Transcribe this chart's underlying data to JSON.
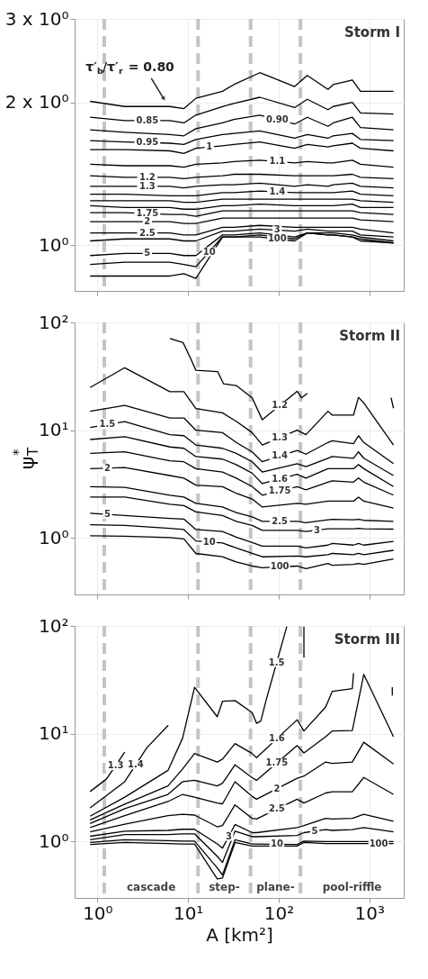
{
  "chart_data": [
    {
      "type": "line",
      "title": "Storm I",
      "log": "xy",
      "grid": true,
      "tick_labels": "y",
      "xlim": [
        0.56,
        2400
      ],
      "xticks": [
        {
          "value": 1,
          "label": null
        },
        {
          "value": 10,
          "label": null
        },
        {
          "value": 100,
          "label": null
        },
        {
          "value": 1000,
          "label": null
        }
      ],
      "ylim": [
        0.8,
        3
      ],
      "yticks": [
        {
          "value": 1,
          "label": "10⁰"
        },
        {
          "value": 2,
          "label": "2 x 10⁰"
        },
        {
          "value": 3,
          "label": "3 x 10⁰"
        }
      ],
      "ref_lines": [
        {
          "axis": "x",
          "value": 1.19,
          "color": "#c4c4c4",
          "line_style": "dashed"
        },
        {
          "axis": "x",
          "value": 12.9,
          "color": "#c4c4c4",
          "line_style": "dashed"
        },
        {
          "axis": "x",
          "value": 49,
          "color": "#c4c4c4",
          "line_style": "dashed"
        },
        {
          "axis": "x",
          "value": 174,
          "color": "#c4c4c4",
          "line_style": "dashed"
        }
      ],
      "annotations": [
        {
          "text": "τ′$_{b}$/τ′$_{r}$ = 0.80",
          "x": 5.66,
          "y": 1.99
        }
      ],
      "x": [
        0.83,
        2,
        6.3,
        9,
        12.2,
        24,
        32,
        62,
        150,
        207,
        350,
        400,
        650,
        800,
        1850
      ],
      "series": [
        {
          "color": "#000000",
          "values": [
            2.01,
            1.96,
            1.96,
            1.94,
            2.04,
            2.11,
            2.18,
            2.31,
            2.16,
            2.28,
            2.13,
            2.18,
            2.23,
            2.11,
            2.11
          ]
        },
        {
          "name": "0.85",
          "color": "#000000",
          "values": [
            1.86,
            1.83,
            1.83,
            1.81,
            1.88,
            1.96,
            1.99,
            2.05,
            1.95,
            2.03,
            1.93,
            1.96,
            2.0,
            1.9,
            1.89
          ]
        },
        {
          "name": "0.90",
          "color": "#000000",
          "values": [
            1.75,
            1.73,
            1.71,
            1.7,
            1.76,
            1.81,
            1.84,
            1.88,
            1.8,
            1.86,
            1.78,
            1.81,
            1.86,
            1.77,
            1.75
          ]
        },
        {
          "name": "0.95",
          "color": "#000000",
          "values": [
            1.66,
            1.65,
            1.64,
            1.63,
            1.67,
            1.71,
            1.72,
            1.74,
            1.68,
            1.71,
            1.68,
            1.7,
            1.72,
            1.67,
            1.66
          ]
        },
        {
          "name": "1",
          "color": "#000000",
          "values": [
            1.59,
            1.59,
            1.58,
            1.56,
            1.6,
            1.62,
            1.63,
            1.65,
            1.6,
            1.63,
            1.61,
            1.62,
            1.64,
            1.6,
            1.58
          ]
        },
        {
          "name": "1.1",
          "color": "#000000",
          "values": [
            1.48,
            1.47,
            1.47,
            1.46,
            1.48,
            1.49,
            1.5,
            1.51,
            1.49,
            1.5,
            1.49,
            1.49,
            1.51,
            1.48,
            1.46
          ]
        },
        {
          "name": "1.2",
          "color": "#000000",
          "values": [
            1.4,
            1.39,
            1.39,
            1.38,
            1.39,
            1.4,
            1.41,
            1.41,
            1.4,
            1.4,
            1.4,
            1.4,
            1.41,
            1.39,
            1.38
          ]
        },
        {
          "name": "1.3",
          "color": "#000000",
          "values": [
            1.33,
            1.33,
            1.33,
            1.32,
            1.33,
            1.34,
            1.34,
            1.35,
            1.33,
            1.34,
            1.33,
            1.34,
            1.35,
            1.33,
            1.32
          ]
        },
        {
          "name": "1.4",
          "color": "#000000",
          "values": [
            1.28,
            1.28,
            1.27,
            1.27,
            1.27,
            1.29,
            1.29,
            1.3,
            1.29,
            1.29,
            1.29,
            1.29,
            1.3,
            1.28,
            1.27
          ]
        },
        {
          "color": "#000000",
          "values": [
            1.24,
            1.24,
            1.24,
            1.23,
            1.23,
            1.25,
            1.25,
            1.25,
            1.25,
            1.25,
            1.25,
            1.25,
            1.25,
            1.24,
            1.23
          ]
        },
        {
          "color": "#000000",
          "values": [
            1.21,
            1.2,
            1.2,
            1.19,
            1.19,
            1.21,
            1.21,
            1.22,
            1.21,
            1.21,
            1.21,
            1.21,
            1.22,
            1.2,
            1.2
          ]
        },
        {
          "name": "1.75",
          "color": "#000000",
          "values": [
            1.17,
            1.17,
            1.16,
            1.16,
            1.15,
            1.18,
            1.18,
            1.18,
            1.18,
            1.18,
            1.18,
            1.18,
            1.18,
            1.17,
            1.16
          ]
        },
        {
          "name": "2",
          "color": "#000000",
          "values": [
            1.12,
            1.12,
            1.12,
            1.11,
            1.11,
            1.14,
            1.14,
            1.14,
            1.14,
            1.14,
            1.14,
            1.14,
            1.14,
            1.13,
            1.12
          ]
        },
        {
          "name": "2.5",
          "color": "#000000",
          "values": [
            1.06,
            1.06,
            1.06,
            1.05,
            1.05,
            1.09,
            1.09,
            1.1,
            1.09,
            1.09,
            1.09,
            1.09,
            1.09,
            1.08,
            1.06
          ]
        },
        {
          "name": "3",
          "color": "#000000",
          "values": [
            1.02,
            1.03,
            1.03,
            1.02,
            1.02,
            1.07,
            1.07,
            1.08,
            1.07,
            1.08,
            1.07,
            1.07,
            1.07,
            1.05,
            1.04
          ]
        },
        {
          "name": "5",
          "color": "#000000",
          "values": [
            0.95,
            0.96,
            0.96,
            0.95,
            0.95,
            1.05,
            1.05,
            1.06,
            1.04,
            1.06,
            1.06,
            1.06,
            1.05,
            1.04,
            1.02
          ]
        },
        {
          "name": "10",
          "color": "#000000",
          "values": [
            0.91,
            0.92,
            0.92,
            0.91,
            0.9,
            1.04,
            1.04,
            1.05,
            1.03,
            1.06,
            1.05,
            1.05,
            1.04,
            1.03,
            1.01
          ]
        },
        {
          "name": "100",
          "color": "#000000",
          "values": [
            0.86,
            0.86,
            0.86,
            0.87,
            0.85,
            1.04,
            1.04,
            1.04,
            1.02,
            1.06,
            1.05,
            1.05,
            1.04,
            1.02,
            1.01
          ]
        }
      ]
    },
    {
      "type": "line",
      "title": "Storm II",
      "ylabel": "ψ$^{*}$$_{T}$",
      "log": "xy",
      "grid": true,
      "tick_labels": "y",
      "xlim": [
        0.56,
        2400
      ],
      "xticks": [
        {
          "value": 1,
          "label": null
        },
        {
          "value": 10,
          "label": null
        },
        {
          "value": 100,
          "label": null
        },
        {
          "value": 1000,
          "label": null
        }
      ],
      "ylim": [
        0.3,
        100
      ],
      "yticks": [
        {
          "value": 1,
          "label": "10⁰"
        },
        {
          "value": 10,
          "label": "10¹"
        },
        {
          "value": 100,
          "label": "10²"
        }
      ],
      "ref_lines": [
        {
          "axis": "x",
          "value": 1.19,
          "color": "#c4c4c4",
          "line_style": "dashed"
        },
        {
          "axis": "x",
          "value": 12.9,
          "color": "#c4c4c4",
          "line_style": "dashed"
        },
        {
          "axis": "x",
          "value": 49,
          "color": "#c4c4c4",
          "line_style": "dashed"
        },
        {
          "axis": "x",
          "value": 174,
          "color": "#c4c4c4",
          "line_style": "dashed"
        }
      ],
      "x": [
        0.83,
        2,
        6.3,
        9,
        12.2,
        24,
        34,
        51,
        66,
        160,
        200,
        350,
        390,
        670,
        760,
        870,
        1850
      ],
      "series": [
        {
          "name": "1.2",
          "color": "#000000",
          "x": [
            6.3,
            8.8,
            10.6,
            12.2,
            21.2,
            24.6,
            34,
            51,
            66,
            160,
            179,
            207,
            1000,
            1741,
            1850
          ],
          "values": [
            71,
            65,
            47,
            36,
            35,
            27,
            26,
            20,
            12.5,
            23,
            20,
            22,
            null,
            20,
            16
          ]
        },
        {
          "name": "1.3",
          "color": "#000000",
          "values": [
            24.9,
            38,
            22.8,
            22.8,
            15.9,
            14.5,
            12.1,
            9.5,
            7.3,
            10,
            9.1,
            15,
            13.8,
            13.8,
            20.2,
            17.9,
            7.3
          ]
        },
        {
          "name": "1.4",
          "color": "#000000",
          "values": [
            15,
            17,
            13,
            13,
            10,
            9.5,
            7.7,
            6.3,
            5.1,
            6.5,
            6.0,
            7.7,
            8.0,
            7.5,
            8.9,
            7.7,
            4.9
          ]
        },
        {
          "name": "1.5",
          "color": "#000000",
          "values": [
            10.6,
            12,
            9.1,
            8.9,
            7.3,
            6.8,
            6.1,
            5.1,
            4.1,
            4.9,
            4.6,
            5.5,
            5.7,
            5.5,
            6.3,
            5.5,
            3.8
          ]
        },
        {
          "name": "1.6",
          "color": "#000000",
          "values": [
            8.2,
            8.7,
            7.0,
            6.8,
            5.7,
            5.4,
            4.8,
            4.0,
            3.2,
            3.9,
            3.6,
            4.4,
            4.4,
            4.4,
            4.8,
            4.4,
            3.0
          ]
        },
        {
          "name": "1.75",
          "color": "#000000",
          "values": [
            6.1,
            6.3,
            5.2,
            5.1,
            4.4,
            4.1,
            3.6,
            3.0,
            2.5,
            3.0,
            2.8,
            3.3,
            3.4,
            3.3,
            3.6,
            3.3,
            2.5
          ]
        },
        {
          "name": "2",
          "color": "#000000",
          "values": [
            4.4,
            4.5,
            3.8,
            3.6,
            3.1,
            3.0,
            2.6,
            2.3,
            1.94,
            2.1,
            2.06,
            2.2,
            2.2,
            2.2,
            2.4,
            2.2,
            1.9
          ]
        },
        {
          "name": "2.5",
          "color": "#000000",
          "values": [
            3.0,
            2.95,
            2.5,
            2.4,
            2.1,
            1.94,
            1.72,
            1.57,
            1.43,
            1.43,
            1.39,
            1.48,
            1.49,
            1.48,
            1.49,
            1.46,
            1.43
          ]
        },
        {
          "name": "3",
          "color": "#000000",
          "values": [
            2.4,
            2.4,
            2.06,
            2.0,
            1.75,
            1.62,
            1.43,
            1.31,
            1.18,
            1.18,
            1.15,
            1.22,
            1.22,
            1.22,
            1.23,
            1.22,
            1.21
          ]
        },
        {
          "name": "5",
          "color": "#000000",
          "values": [
            1.7,
            1.62,
            1.52,
            1.5,
            1.2,
            1.15,
            1.02,
            0.91,
            0.84,
            0.84,
            0.81,
            0.86,
            0.89,
            0.86,
            0.89,
            0.86,
            0.93
          ]
        },
        {
          "name": "10",
          "color": "#000000",
          "values": [
            1.33,
            1.31,
            1.23,
            1.2,
            0.94,
            0.9,
            0.81,
            0.72,
            0.67,
            0.68,
            0.67,
            0.7,
            0.72,
            0.7,
            0.72,
            0.7,
            0.77
          ]
        },
        {
          "name": "100",
          "color": "#000000",
          "values": [
            1.05,
            1.04,
            1.01,
            0.98,
            0.72,
            0.67,
            0.6,
            0.55,
            0.53,
            0.55,
            0.52,
            0.58,
            0.56,
            0.57,
            0.58,
            0.57,
            0.64
          ]
        }
      ]
    },
    {
      "type": "line",
      "title": "Storm III",
      "xlabel": "A [km²]",
      "log": "xy",
      "grid": true,
      "xlim": [
        0.56,
        2400
      ],
      "xticks": [
        {
          "value": 1,
          "label": "10⁰"
        },
        {
          "value": 10,
          "label": "10¹"
        },
        {
          "value": 100,
          "label": "10²"
        },
        {
          "value": 1000,
          "label": "10³"
        }
      ],
      "ylim": [
        0.3,
        100
      ],
      "yticks": [
        {
          "value": 1,
          "label": "10⁰"
        },
        {
          "value": 10,
          "label": "10¹"
        },
        {
          "value": 100,
          "label": "10²"
        }
      ],
      "ref_lines": [
        {
          "axis": "x",
          "value": 1.19,
          "color": "#c4c4c4",
          "line_style": "dashed"
        },
        {
          "axis": "x",
          "value": 12.9,
          "color": "#c4c4c4",
          "line_style": "dashed"
        },
        {
          "axis": "x",
          "value": 49,
          "color": "#c4c4c4",
          "line_style": "dashed"
        },
        {
          "axis": "x",
          "value": 174,
          "color": "#c4c4c4",
          "line_style": "dashed"
        }
      ],
      "annotations": [
        "cascade",
        "step-",
        "plane-",
        "pool-riffle"
      ],
      "x": [
        0.83,
        2,
        6,
        8.7,
        11.8,
        21,
        24,
        33,
        51,
        57,
        160,
        190,
        330,
        390,
        650,
        870,
        1850
      ],
      "series": [
        {
          "name": "1.3",
          "color": "#000000",
          "x": [
            0.83,
            1.26,
            2
          ],
          "values": [
            2.91,
            3.81,
            6.76
          ]
        },
        {
          "name": "1.4",
          "color": "#000000",
          "x": [
            0.83,
            2,
            3.5,
            6.05
          ],
          "values": [
            2.05,
            3.59,
            7.4,
            12.0
          ]
        },
        {
          "name": "1.5",
          "color": "#000000",
          "x": [
            0.83,
            2,
            6,
            8.7,
            11.8,
            21,
            24,
            33,
            51,
            57,
            63.5,
            73.5,
            123,
            150,
            190,
            190,
            1000,
            1795,
            1795
          ],
          "values": [
            1.72,
            2.58,
            4.57,
            9.1,
            27.0,
            14.4,
            20.0,
            20.3,
            15.7,
            12.5,
            13.1,
            21.2,
            98.8,
            null,
            98.8,
            51,
            null,
            27,
            22.6
          ]
        },
        {
          "name": "1.6",
          "color": "#000000",
          "x": [
            0.83,
            2,
            6,
            8.7,
            11.8,
            21,
            24,
            33,
            51,
            57,
            160,
            190,
            330,
            390,
            650,
            670
          ],
          "values": [
            1.59,
            2.22,
            3.28,
            4.71,
            6.56,
            5.47,
            5.81,
            8.1,
            6.56,
            6.0,
            13.5,
            10.6,
            17.7,
            24.7,
            26.2,
            36.5
          ]
        },
        {
          "name": "1.75",
          "color": "#000000",
          "values": [
            1.47,
            2.02,
            2.74,
            3.59,
            3.7,
            3.28,
            3.48,
            5.15,
            3.91,
            3.7,
            7.77,
            6.64,
            9.4,
            10.6,
            10.7,
            35.5,
            9.4
          ]
        },
        {
          "name": "2",
          "color": "#000000",
          "values": [
            1.35,
            1.74,
            2.35,
            2.74,
            2.58,
            2.28,
            2.24,
            3.59,
            2.62,
            2.47,
            3.86,
            4.05,
            5.47,
            5.31,
            5.47,
            8.34,
            5.25
          ]
        },
        {
          "name": "2.5",
          "color": "#000000",
          "values": [
            1.23,
            1.45,
            1.74,
            1.79,
            1.76,
            1.37,
            1.41,
            2.19,
            1.64,
            1.62,
            2.47,
            2.28,
            2.82,
            2.9,
            2.9,
            3.93,
            2.74
          ]
        },
        {
          "name": "3",
          "color": "#000000",
          "values": [
            1.12,
            1.25,
            1.27,
            1.3,
            1.3,
            0.95,
            0.87,
            1.44,
            1.21,
            1.21,
            1.35,
            1.41,
            1.64,
            1.62,
            1.64,
            1.79,
            1.54
          ]
        },
        {
          "name": "5",
          "color": "#000000",
          "values": [
            1.04,
            1.16,
            1.16,
            1.18,
            1.18,
            0.73,
            0.64,
            1.25,
            1.11,
            1.11,
            1.14,
            1.21,
            1.29,
            1.27,
            1.29,
            1.35,
            1.23
          ]
        },
        {
          "name": "10",
          "color": "#000000",
          "values": [
            0.98,
            1.04,
            1.02,
            1.01,
            1.01,
            0.57,
            0.49,
            1.04,
            0.95,
            0.95,
            0.94,
            1.01,
            1.0,
            1.0,
            1.0,
            1.0,
            1.0
          ]
        },
        {
          "name": "100",
          "color": "#000000",
          "values": [
            0.94,
            0.98,
            0.96,
            0.95,
            0.95,
            0.45,
            0.46,
            0.98,
            0.91,
            0.91,
            0.91,
            0.98,
            0.96,
            0.96,
            0.96,
            0.96,
            0.96
          ]
        }
      ]
    }
  ]
}
